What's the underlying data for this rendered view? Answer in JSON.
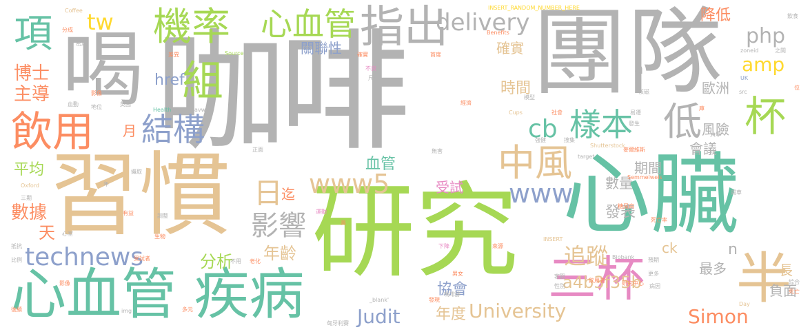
{
  "palette": {
    "gray": "#b3b3b3",
    "green": "#a6d854",
    "teal": "#66c2a5",
    "tan": "#e5c494",
    "orange": "#fc8d62",
    "blue": "#8da0cb",
    "pink": "#e78ac3",
    "yellow": "#ffd92f"
  },
  "words": {
    "kafei": "咖啡",
    "tuandui": "團隊",
    "he": "喝",
    "xiguan": "習慣",
    "yanjiu": "研究",
    "xinzang": "心臟",
    "xinxueguan_jibing": "心血管 疾病",
    "sanbei": "三杯",
    "ban": "半",
    "jilv": "機率",
    "xinxueguan": "心血管",
    "zhichu": "指出",
    "delivery": "delivery",
    "php": "php",
    "xiang": "項",
    "zu": "組",
    "tw": "tw",
    "yinyong": "飲用",
    "jiegou": "結構",
    "cb": "cb",
    "yangben": "樣本",
    "di": "低",
    "bei": "杯",
    "zhongfeng": "中風",
    "www5": "www5",
    "www": "www",
    "ri": "日",
    "yingxiang": "影響",
    "technews": "technews",
    "fenxi": "分析",
    "nianling": "年齡",
    "zhuizong": "追蹤",
    "boshi": "博士",
    "zhudao": "主導",
    "yue": "月",
    "pingjun": "平均",
    "shuju": "數據",
    "tian": "天",
    "href": "href",
    "amp": "amp",
    "shijian": "時間",
    "queshi": "確實",
    "guanlianxing": "關聯性",
    "jiangdi": "降低",
    "ouzhou": "歐洲",
    "fengxian": "風險",
    "huiyi": "會議",
    "qijian": "期間",
    "shouxi": "受試",
    "shuliang": "數量",
    "fabiao": "發表",
    "xueguan": "血管",
    "qi": "迄",
    "ck": "ck",
    "n": "n",
    "zuiduo": "最多",
    "chang": "長",
    "fumian": "負面",
    "simon": "Simon",
    "a4b": "a4b3f35b",
    "university": "University",
    "judit": "Judit",
    "niandu": "年度",
    "xiehui": "協會",
    "a": "a",
    "coffee": "Coffee",
    "insert_random": "INSERT_RANDOM_NUMBER_HERE",
    "yincai": "飲食",
    "fencheng": "分成",
    "benefits": "Benefits",
    "zhijian": "之間",
    "zoneid": "zoneid",
    "midu": "密度",
    "chayi": "差異",
    "source": "Source",
    "buliang": "不良",
    "chicun": "尺寸",
    "queren": "確實",
    "shoudu": "首度",
    "uk": "UK",
    "wei": "位",
    "src": "src",
    "hesi": "核磁",
    "yingxiang2": "影像",
    "xuedong": "血動",
    "diwei": "地位",
    "yingguo": "英國",
    "health": "Health",
    "avw": "avw",
    "moxing": "模型",
    "cups": "Cups",
    "jingji": "經濟",
    "shehui": "社會",
    "kuli": "庫",
    "yiqian": "易遷",
    "fasheng": "發生",
    "daxue": "大學",
    "qiangjian": "強健",
    "oxford": "Oxford",
    "sanbei2": "三期",
    "zhengmian": "正面",
    "wuhai": "無害",
    "jiance": "搜集",
    "shutterstock": "Shutterstock",
    "maisi": "麥爾維斯",
    "semmelweis": "Semmelweis",
    "target": "target",
    "jinche": "錫車",
    "niannian": "年",
    "gao": "高",
    "sheyu": "攝取",
    "shengwu": "生物",
    "youyi": "有益",
    "diaocha": "調整",
    "yundong": "運動",
    "xiaxuan": "下降",
    "laiyuan": "來源",
    "tangniaobing": "糖尿病",
    "siwang": "死亡率",
    "insert": "INSERT",
    "kangju": "抵抗",
    "xinshi": "心室",
    "biliao": "比例",
    "shoushi": "受試者",
    "buyong": "不用",
    "laohua": "老化",
    "biobank": "Biobank",
    "gengduo": "更多",
    "yuxiao": "預期",
    "shenqu": "心趨",
    "nannv": "男女",
    "keguan": "客觀",
    "yinyongzhe": "飲用者",
    "yanjiuzhongxin": "研究中心",
    "zonghe": "綜合",
    "sipan": "死亡",
    "xingbie": "性別",
    "binghuan": "病因",
    "houxu": "後續",
    "img": "img",
    "blank": "_blank'",
    "faxian": "發現",
    "mafei": "嗎啡酵",
    "day": "Day",
    "duoyuan": "多元",
    "xiongyali": "匈牙利賽"
  }
}
